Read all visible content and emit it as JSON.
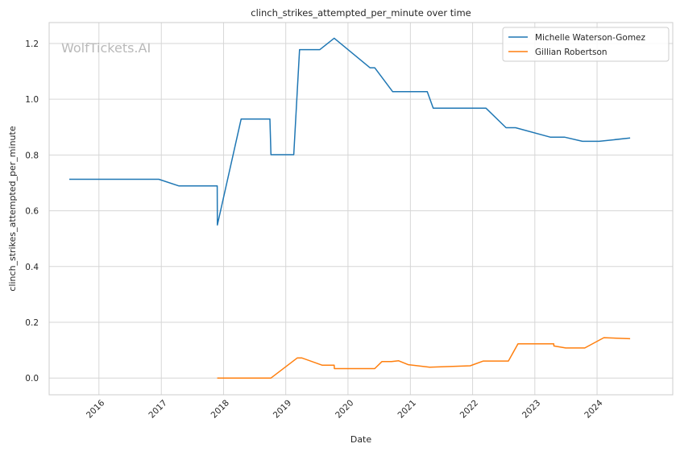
{
  "chart_data": {
    "type": "line",
    "title": "clinch_strikes_attempted_per_minute over time",
    "xlabel": "Date",
    "ylabel": "clinch_strikes_attempted_per_minute",
    "watermark": "WolfTickets.AI",
    "xlim": [
      "2015-03-15",
      "2025-03-20"
    ],
    "ylim": [
      -0.06,
      1.275
    ],
    "x_ticks": [
      "2016-01-01",
      "2017-01-01",
      "2018-01-01",
      "2019-01-01",
      "2020-01-01",
      "2021-01-01",
      "2022-01-01",
      "2023-01-01",
      "2024-01-01"
    ],
    "x_tick_labels": [
      "2016",
      "2017",
      "2018",
      "2019",
      "2020",
      "2021",
      "2022",
      "2023",
      "2024"
    ],
    "y_ticks": [
      0.0,
      0.2,
      0.4,
      0.6,
      0.8,
      1.0,
      1.2
    ],
    "y_tick_labels": [
      "0.0",
      "0.2",
      "0.4",
      "0.6",
      "0.8",
      "1.0",
      "1.2"
    ],
    "grid": true,
    "legend_position": "top-right",
    "series": [
      {
        "name": "Michelle Waterson-Gomez",
        "color": "#1f77b4",
        "points": [
          [
            "2015-07-11",
            0.713
          ],
          [
            "2016-12-17",
            0.713
          ],
          [
            "2017-04-15",
            0.689
          ],
          [
            "2017-11-25",
            0.689
          ],
          [
            "2017-11-26",
            0.549
          ],
          [
            "2018-04-14",
            0.929
          ],
          [
            "2018-09-30",
            0.929
          ],
          [
            "2018-10-06",
            0.801
          ],
          [
            "2019-02-17",
            0.801
          ],
          [
            "2019-03-23",
            1.178
          ],
          [
            "2019-07-20",
            1.178
          ],
          [
            "2019-10-12",
            1.219
          ],
          [
            "2020-05-09",
            1.113
          ],
          [
            "2020-06-06",
            1.113
          ],
          [
            "2020-09-19",
            1.027
          ],
          [
            "2021-04-10",
            1.027
          ],
          [
            "2021-05-15",
            0.968
          ],
          [
            "2022-03-20",
            0.968
          ],
          [
            "2022-07-16",
            0.898
          ],
          [
            "2022-09-10",
            0.898
          ],
          [
            "2023-04-01",
            0.864
          ],
          [
            "2023-06-24",
            0.864
          ],
          [
            "2023-10-07",
            0.849
          ],
          [
            "2024-01-13",
            0.849
          ],
          [
            "2024-07-13",
            0.861
          ]
        ]
      },
      {
        "name": "Gillian Robertson",
        "color": "#ff7f0e",
        "points": [
          [
            "2017-11-25",
            0.0
          ],
          [
            "2018-10-06",
            0.0
          ],
          [
            "2019-03-09",
            0.072
          ],
          [
            "2019-04-06",
            0.072
          ],
          [
            "2019-08-03",
            0.046
          ],
          [
            "2019-10-12",
            0.046
          ],
          [
            "2019-10-13",
            0.034
          ],
          [
            "2020-04-04",
            0.034
          ],
          [
            "2020-06-06",
            0.034
          ],
          [
            "2020-07-18",
            0.059
          ],
          [
            "2020-09-12",
            0.059
          ],
          [
            "2020-10-24",
            0.062
          ],
          [
            "2020-12-19",
            0.048
          ],
          [
            "2021-04-24",
            0.039
          ],
          [
            "2021-12-18",
            0.044
          ],
          [
            "2022-03-05",
            0.061
          ],
          [
            "2022-07-30",
            0.061
          ],
          [
            "2022-09-24",
            0.123
          ],
          [
            "2023-02-25",
            0.123
          ],
          [
            "2023-04-22",
            0.123
          ],
          [
            "2023-04-23",
            0.115
          ],
          [
            "2023-07-01",
            0.108
          ],
          [
            "2023-10-21",
            0.108
          ],
          [
            "2024-02-10",
            0.145
          ],
          [
            "2024-07-13",
            0.141
          ]
        ]
      }
    ]
  }
}
